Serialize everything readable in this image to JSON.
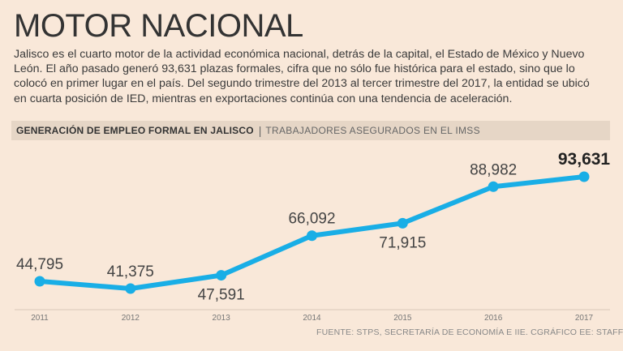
{
  "title": "MOTOR NACIONAL",
  "lead": "Jalisco es el cuarto motor de la actividad económica nacional, detrás de la capital, el Estado de México y Nuevo León. El año pasado generó 93,631 plazas formales, cifra que no sólo fue histórica para el estado, sino que lo colocó en primer lugar en el país. Del segundo trimestre del 2013 al tercer trimestre del 2017, la entidad se ubicó en cuarta posición de IED, mientras en exportaciones continúa con una tendencia de aceleración.",
  "header": {
    "label": "GENERACIÓN DE EMPLEO FORMAL EN JALISCO",
    "separator": "|",
    "sublabel": "TRABAJADORES ASEGURADOS EN EL IMSS"
  },
  "source": "FUENTE: STPS, SECRETARÍA DE ECONOMÍA E IIE. CGRÁFICO EE: STAFF.",
  "colors": {
    "background": "#f9e8d9",
    "line": "#19aee6",
    "header_bar": "#e6d6c6"
  },
  "chart_data": {
    "type": "line",
    "title": "GENERACIÓN DE EMPLEO FORMAL EN JALISCO",
    "subtitle": "TRABAJADORES ASEGURADOS EN EL IMSS",
    "categories": [
      "2011",
      "2012",
      "2013",
      "2014",
      "2015",
      "2016",
      "2017"
    ],
    "values": [
      44795,
      41375,
      47591,
      66092,
      71915,
      88982,
      93631
    ],
    "labels": [
      "44,795",
      "41,375",
      "47,591",
      "66,092",
      "71,915",
      "88,982",
      "93,631"
    ],
    "label_positions": [
      "above",
      "above",
      "below",
      "above",
      "below",
      "above",
      "above"
    ],
    "highlight_last": true,
    "xlabel": "",
    "ylabel": "",
    "ylim": [
      40000,
      96000
    ],
    "grid": false
  }
}
